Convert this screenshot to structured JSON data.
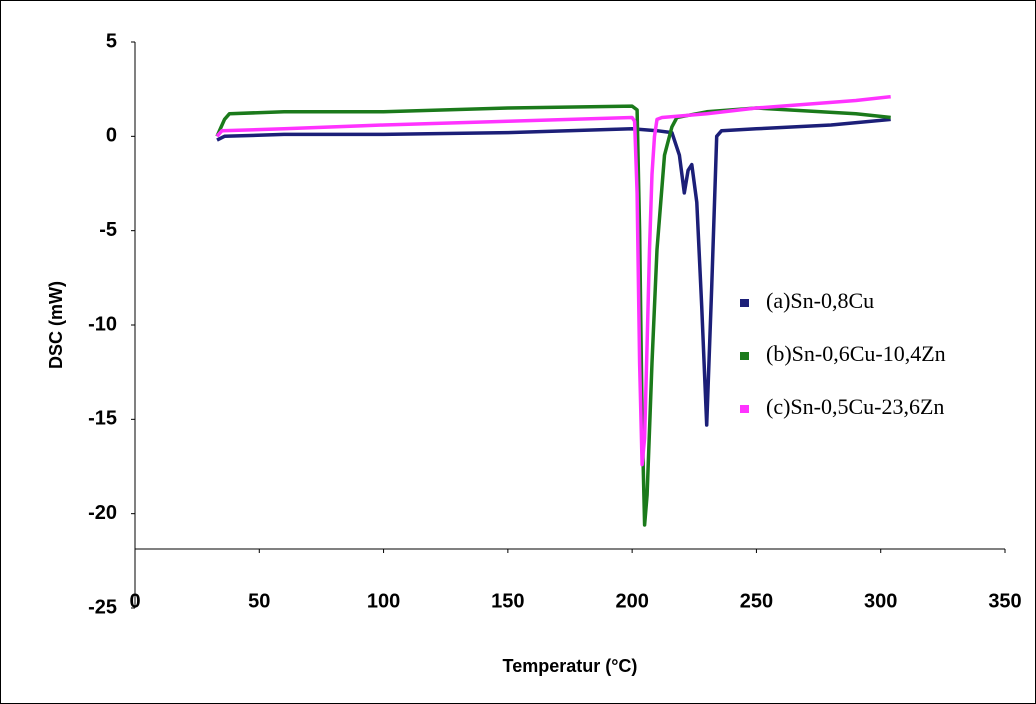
{
  "chart_data": {
    "type": "line",
    "y_label": "DSC (mW)",
    "x_label": "Temperatur (°C)",
    "xlim": [
      0,
      350
    ],
    "xticks": [
      0,
      50,
      100,
      150,
      200,
      250,
      300,
      350
    ],
    "ylim": [
      -25,
      5
    ],
    "yticks": [
      5,
      0,
      -5,
      -10,
      -15,
      -20,
      -25
    ],
    "legend": "right",
    "series": [
      {
        "name": "(a)Sn-0,8Cu",
        "color": "#1c1f78",
        "x": [
          33,
          36,
          60,
          100,
          150,
          200,
          210,
          216,
          219,
          221,
          222.5,
          224,
          226,
          228,
          230,
          232,
          234,
          236,
          250,
          280,
          304
        ],
        "values": [
          -0.2,
          0.0,
          0.1,
          0.1,
          0.2,
          0.4,
          0.3,
          0.2,
          -1.0,
          -3.0,
          -1.8,
          -1.5,
          -3.5,
          -9.0,
          -15.3,
          -8.0,
          0.0,
          0.3,
          0.4,
          0.6,
          0.9
        ]
      },
      {
        "name": "(b)Sn-0,6Cu-10,4Zn",
        "color": "#1b7a1b",
        "x": [
          33,
          36,
          38,
          60,
          100,
          150,
          200,
          202,
          203,
          204,
          205,
          206,
          208,
          210,
          213,
          216,
          218,
          230,
          250,
          290,
          304
        ],
        "values": [
          0.0,
          0.9,
          1.2,
          1.3,
          1.3,
          1.5,
          1.6,
          1.4,
          -5.0,
          -15.0,
          -20.6,
          -19.0,
          -12.0,
          -6.0,
          -1.0,
          0.5,
          1.0,
          1.3,
          1.5,
          1.2,
          1.0
        ]
      },
      {
        "name": "(c)Sn-0,5Cu-23,6Zn",
        "color": "#ff33ff",
        "x": [
          33,
          35,
          60,
          100,
          150,
          200,
          201,
          202,
          203,
          204,
          205,
          206,
          207,
          208,
          209,
          210,
          212,
          230,
          250,
          290,
          304
        ],
        "values": [
          0.0,
          0.3,
          0.4,
          0.6,
          0.8,
          1.0,
          0.8,
          -3.0,
          -12.0,
          -17.4,
          -16.0,
          -11.0,
          -6.0,
          -2.0,
          0.0,
          0.9,
          1.0,
          1.2,
          1.5,
          1.9,
          2.1
        ]
      }
    ]
  }
}
